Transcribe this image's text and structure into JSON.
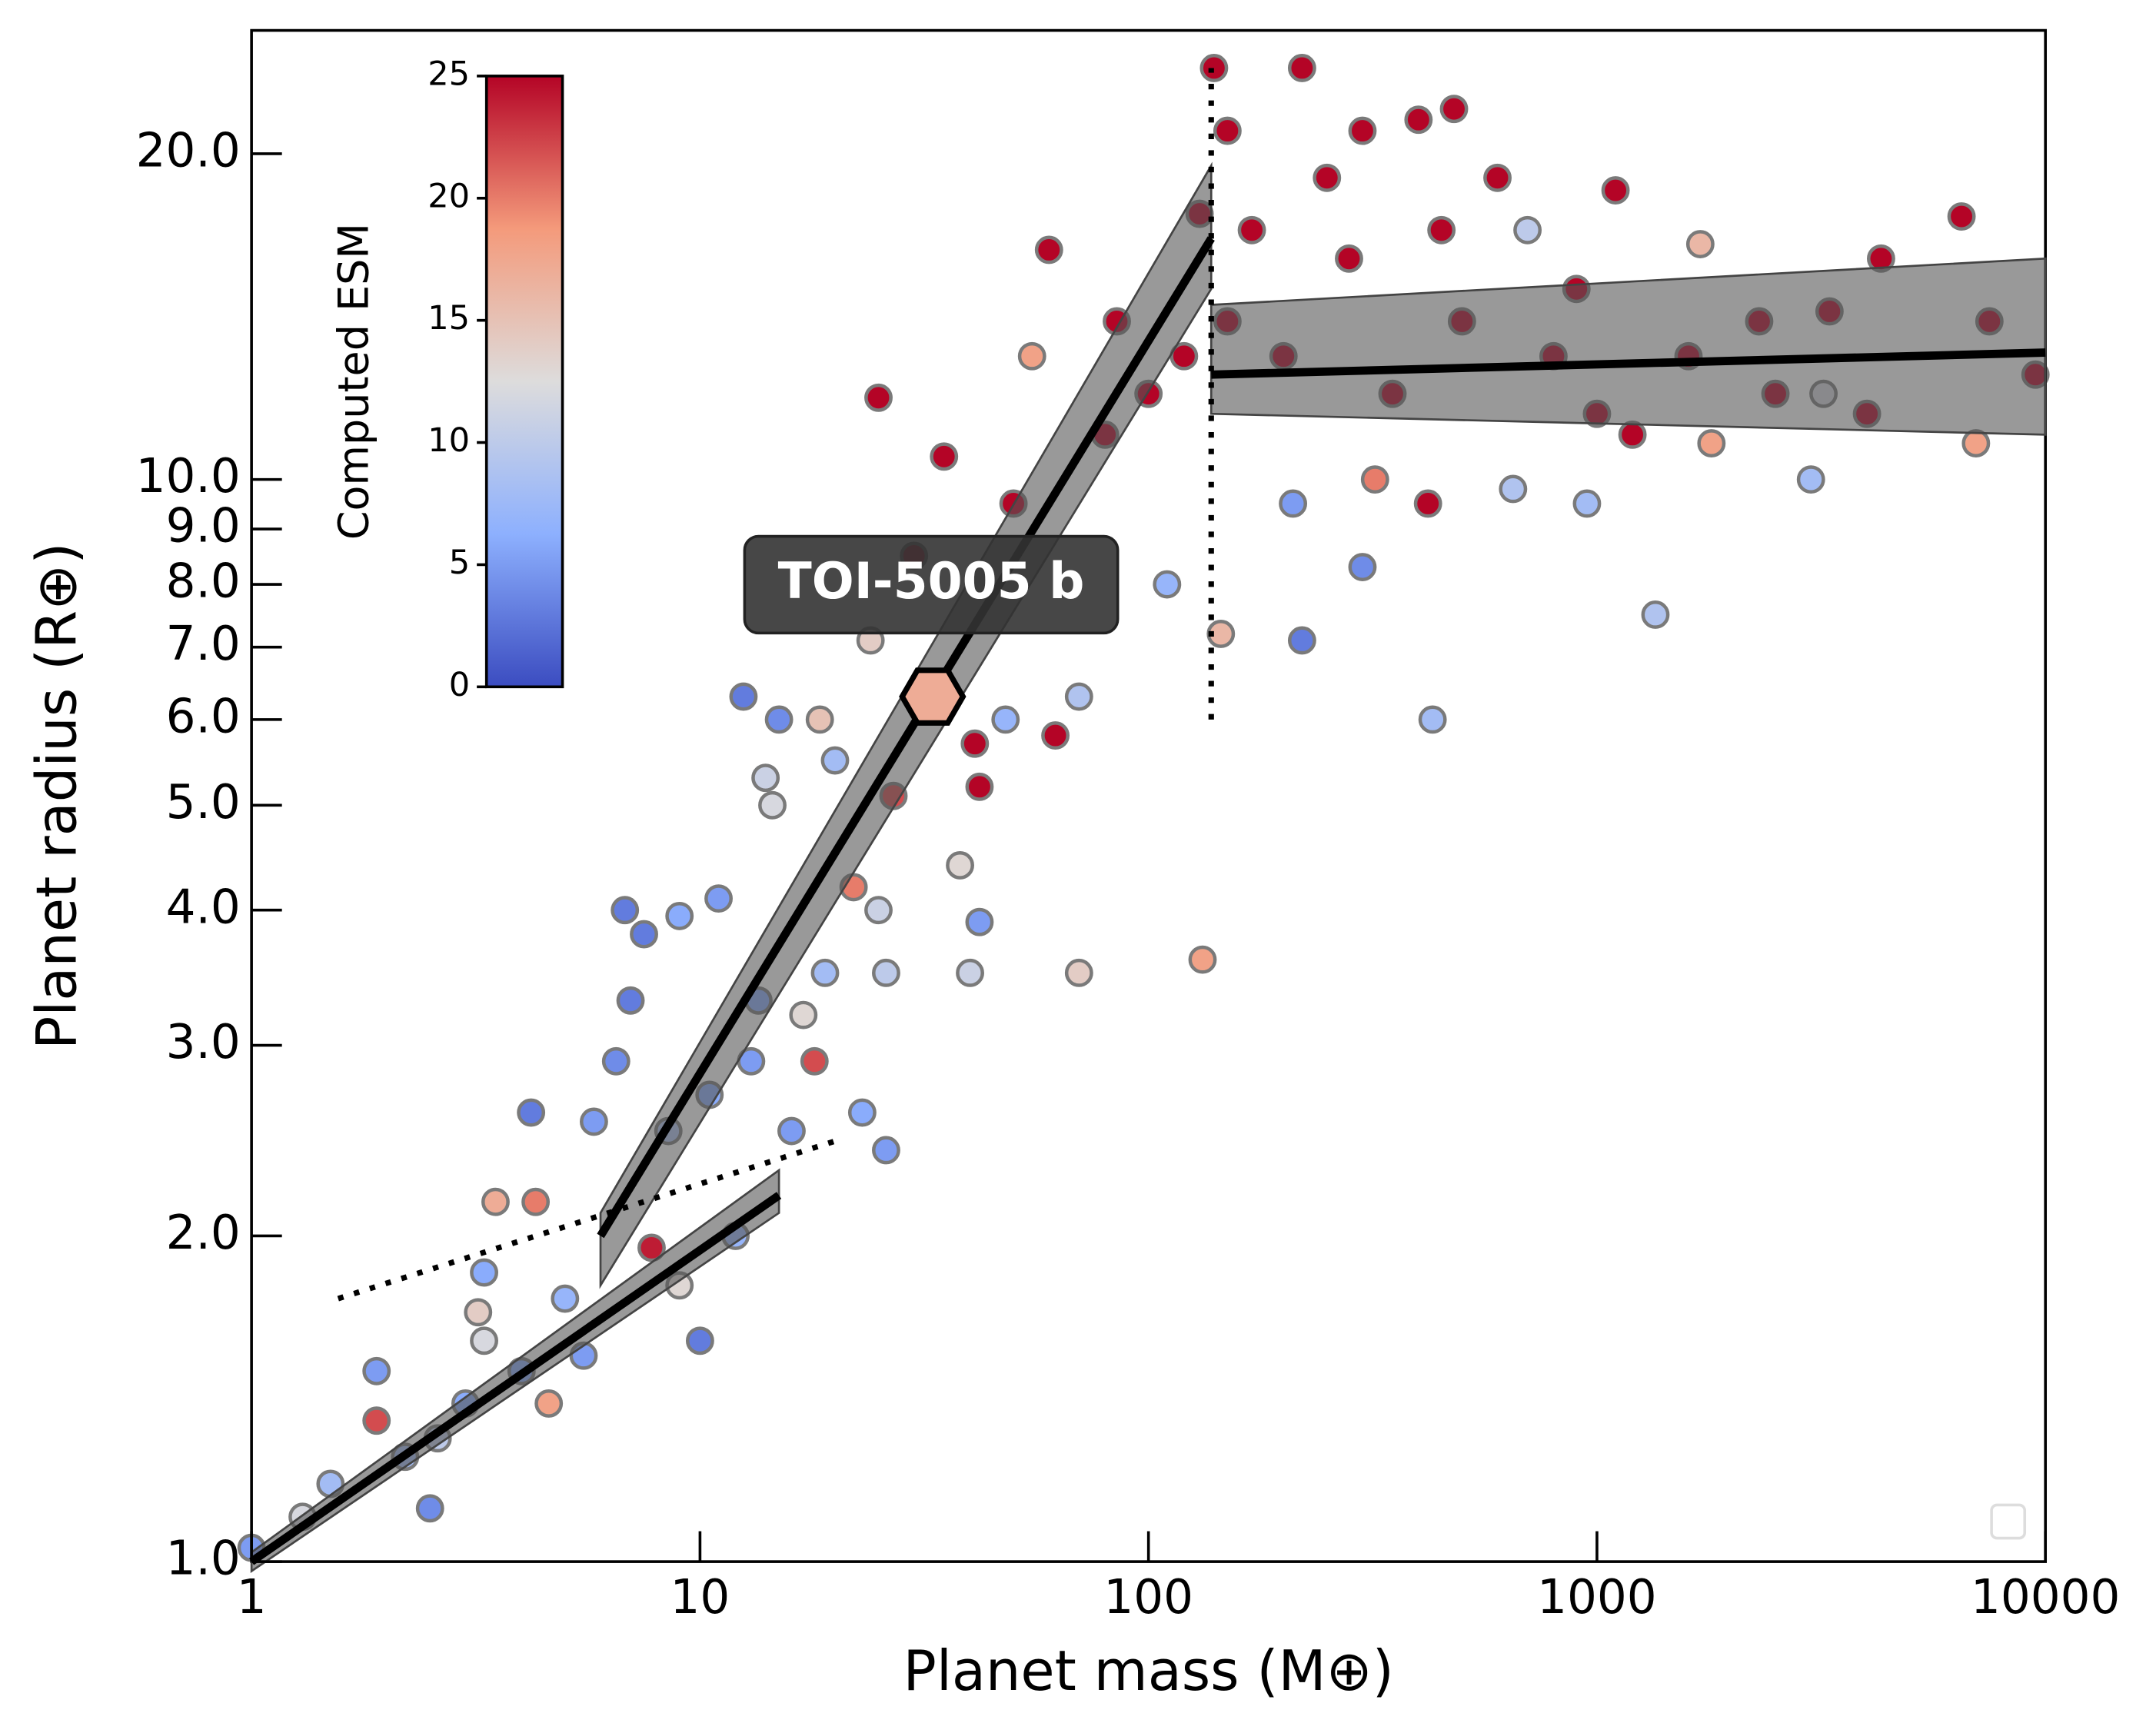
{
  "chart_data": {
    "type": "scatter",
    "x_label": "Planet mass (M⊕)",
    "y_label": "Planet radius (R⊕)",
    "xscale": "log",
    "yscale": "log",
    "xlim": [
      1,
      10000
    ],
    "ylim": [
      1,
      26
    ],
    "xticks": [
      1,
      10,
      100,
      1000,
      10000
    ],
    "yticks": [
      {
        "value": 1,
        "label": "1.0"
      },
      {
        "value": 2,
        "label": "2.0"
      },
      {
        "value": 3,
        "label": "3.0"
      },
      {
        "value": 4,
        "label": "4.0"
      },
      {
        "value": 5,
        "label": "5.0"
      },
      {
        "value": 6,
        "label": "6.0"
      },
      {
        "value": 7,
        "label": "7.0"
      },
      {
        "value": 8,
        "label": "8.0"
      },
      {
        "value": 9,
        "label": "9.0"
      },
      {
        "value": 10,
        "label": "10.0"
      },
      {
        "value": 20,
        "label": "20.0"
      }
    ],
    "colorbar": {
      "label": "Computed ESM",
      "clim": [
        0,
        25
      ],
      "ticks": [
        0,
        5,
        10,
        15,
        20,
        25
      ],
      "colormap": [
        "#3b4cc0",
        "#8db0fe",
        "#dddcdc",
        "#f49a7b",
        "#b40426"
      ]
    },
    "points": {
      "x": [
        1.0,
        1.3,
        1.5,
        1.9,
        1.9,
        2.2,
        2.5,
        2.6,
        3.0,
        3.2,
        3.3,
        3.5,
        3.3,
        4.0,
        4.2,
        4.3,
        4.6,
        5.0,
        5.5,
        5.8,
        6.5,
        6.8,
        7.0,
        7.5,
        7.8,
        8.5,
        9,
        9,
        10,
        10.5,
        11,
        12,
        12.5,
        13,
        13.5,
        14,
        14.5,
        15,
        16,
        17,
        18,
        18.5,
        19,
        20,
        22,
        23,
        24,
        25,
        25,
        26,
        26,
        27,
        30,
        35,
        38,
        40,
        41,
        42,
        42,
        48,
        50,
        55,
        60,
        62,
        70,
        70,
        80,
        85,
        100,
        110,
        120,
        130,
        132,
        140,
        145,
        150,
        150,
        170,
        200,
        210,
        220,
        220,
        250,
        280,
        300,
        300,
        320,
        350,
        400,
        420,
        430,
        450,
        480,
        500,
        600,
        650,
        700,
        800,
        900,
        950,
        1000,
        1100,
        1200,
        1350,
        1600,
        1700,
        1800,
        2300,
        2500,
        3000,
        3200,
        3300,
        4000,
        4300,
        6500,
        7000,
        7500,
        9500
      ],
      "y": [
        1.03,
        1.1,
        1.18,
        1.5,
        1.35,
        1.25,
        1.12,
        1.3,
        1.4,
        1.7,
        1.6,
        2.15,
        1.85,
        1.5,
        2.6,
        2.15,
        1.4,
        1.75,
        1.55,
        2.55,
        2.9,
        4.0,
        3.3,
        3.8,
        1.95,
        2.5,
        3.95,
        1.8,
        1.6,
        2.7,
        4.1,
        2.0,
        6.3,
        2.9,
        3.3,
        5.3,
        5.0,
        6.0,
        2.5,
        3.2,
        2.9,
        6.0,
        3.5,
        5.5,
        4.2,
        2.6,
        7.1,
        4.0,
        11.9,
        3.5,
        2.4,
        5.1,
        8.5,
        10.5,
        4.4,
        3.5,
        5.7,
        3.9,
        5.2,
        6.0,
        9.5,
        13,
        16.3,
        5.8,
        3.5,
        6.3,
        11,
        14,
        12,
        8,
        13,
        17.6,
        3.6,
        24,
        7.2,
        14,
        21,
        17,
        13,
        9.5,
        7.1,
        24,
        19,
        16,
        8.3,
        21,
        10,
        12,
        21.5,
        9.5,
        6.0,
        17,
        22,
        14,
        19,
        9.8,
        17,
        13,
        15,
        9.5,
        11.5,
        18.5,
        11,
        7.5,
        13,
        16.5,
        10.8,
        14,
        12,
        10,
        12,
        14.3,
        11.5,
        16,
        17.5,
        10.8,
        14,
        12.5
      ],
      "esm": [
        5,
        12,
        8,
        5,
        22,
        8,
        4,
        10,
        6,
        14,
        12,
        17,
        6,
        6,
        3,
        20,
        18,
        7,
        5,
        5,
        4,
        3,
        3,
        3,
        24,
        9,
        6,
        13,
        3,
        6,
        5,
        7,
        3,
        5,
        6,
        11,
        12,
        4,
        5,
        13,
        22,
        15,
        8,
        8,
        20,
        6,
        14,
        11,
        25,
        10,
        5,
        22,
        24,
        25,
        13,
        11,
        25,
        5,
        25,
        7,
        25,
        18,
        25,
        25,
        14,
        9,
        25,
        25,
        25,
        7,
        25,
        25,
        18,
        25,
        16,
        25,
        25,
        25,
        25,
        5,
        3,
        25,
        25,
        25,
        4,
        25,
        20,
        25,
        25,
        25,
        8,
        25,
        25,
        25,
        25,
        9,
        10,
        25,
        25,
        8,
        25,
        25,
        25,
        9,
        25,
        16,
        18,
        25,
        25,
        8,
        12,
        25,
        25,
        25,
        25,
        18,
        25,
        25
      ]
    },
    "bands": [
      {
        "x": [
          1,
          15
        ],
        "lower": [
          0.98,
          2.1
        ],
        "upper": [
          1.02,
          2.3
        ]
      },
      {
        "x": [
          6,
          138
        ],
        "lower": [
          1.8,
          15
        ],
        "upper": [
          2.1,
          19.5
        ]
      },
      {
        "x": [
          138,
          10000
        ],
        "lower": [
          11.5,
          11.0
        ],
        "upper": [
          14.5,
          16.0
        ]
      }
    ],
    "lines": [
      {
        "x": [
          1,
          15
        ],
        "y": [
          1.0,
          2.18
        ],
        "style": "solid"
      },
      {
        "x": [
          6,
          138
        ],
        "y": [
          2.0,
          16.7
        ],
        "style": "solid"
      },
      {
        "x": [
          138,
          10000
        ],
        "y": [
          12.5,
          13.1
        ],
        "style": "solid"
      },
      {
        "x": [
          138,
          138
        ],
        "y": [
          6.0,
          24
        ],
        "style": "dotted"
      },
      {
        "x": [
          1.56,
          20.2
        ],
        "y": [
          1.75,
          2.45
        ],
        "style": "dotted"
      }
    ],
    "annotation": {
      "text": "TOI-5005 b",
      "x": 33,
      "y": 6.3,
      "esm": 17
    }
  }
}
